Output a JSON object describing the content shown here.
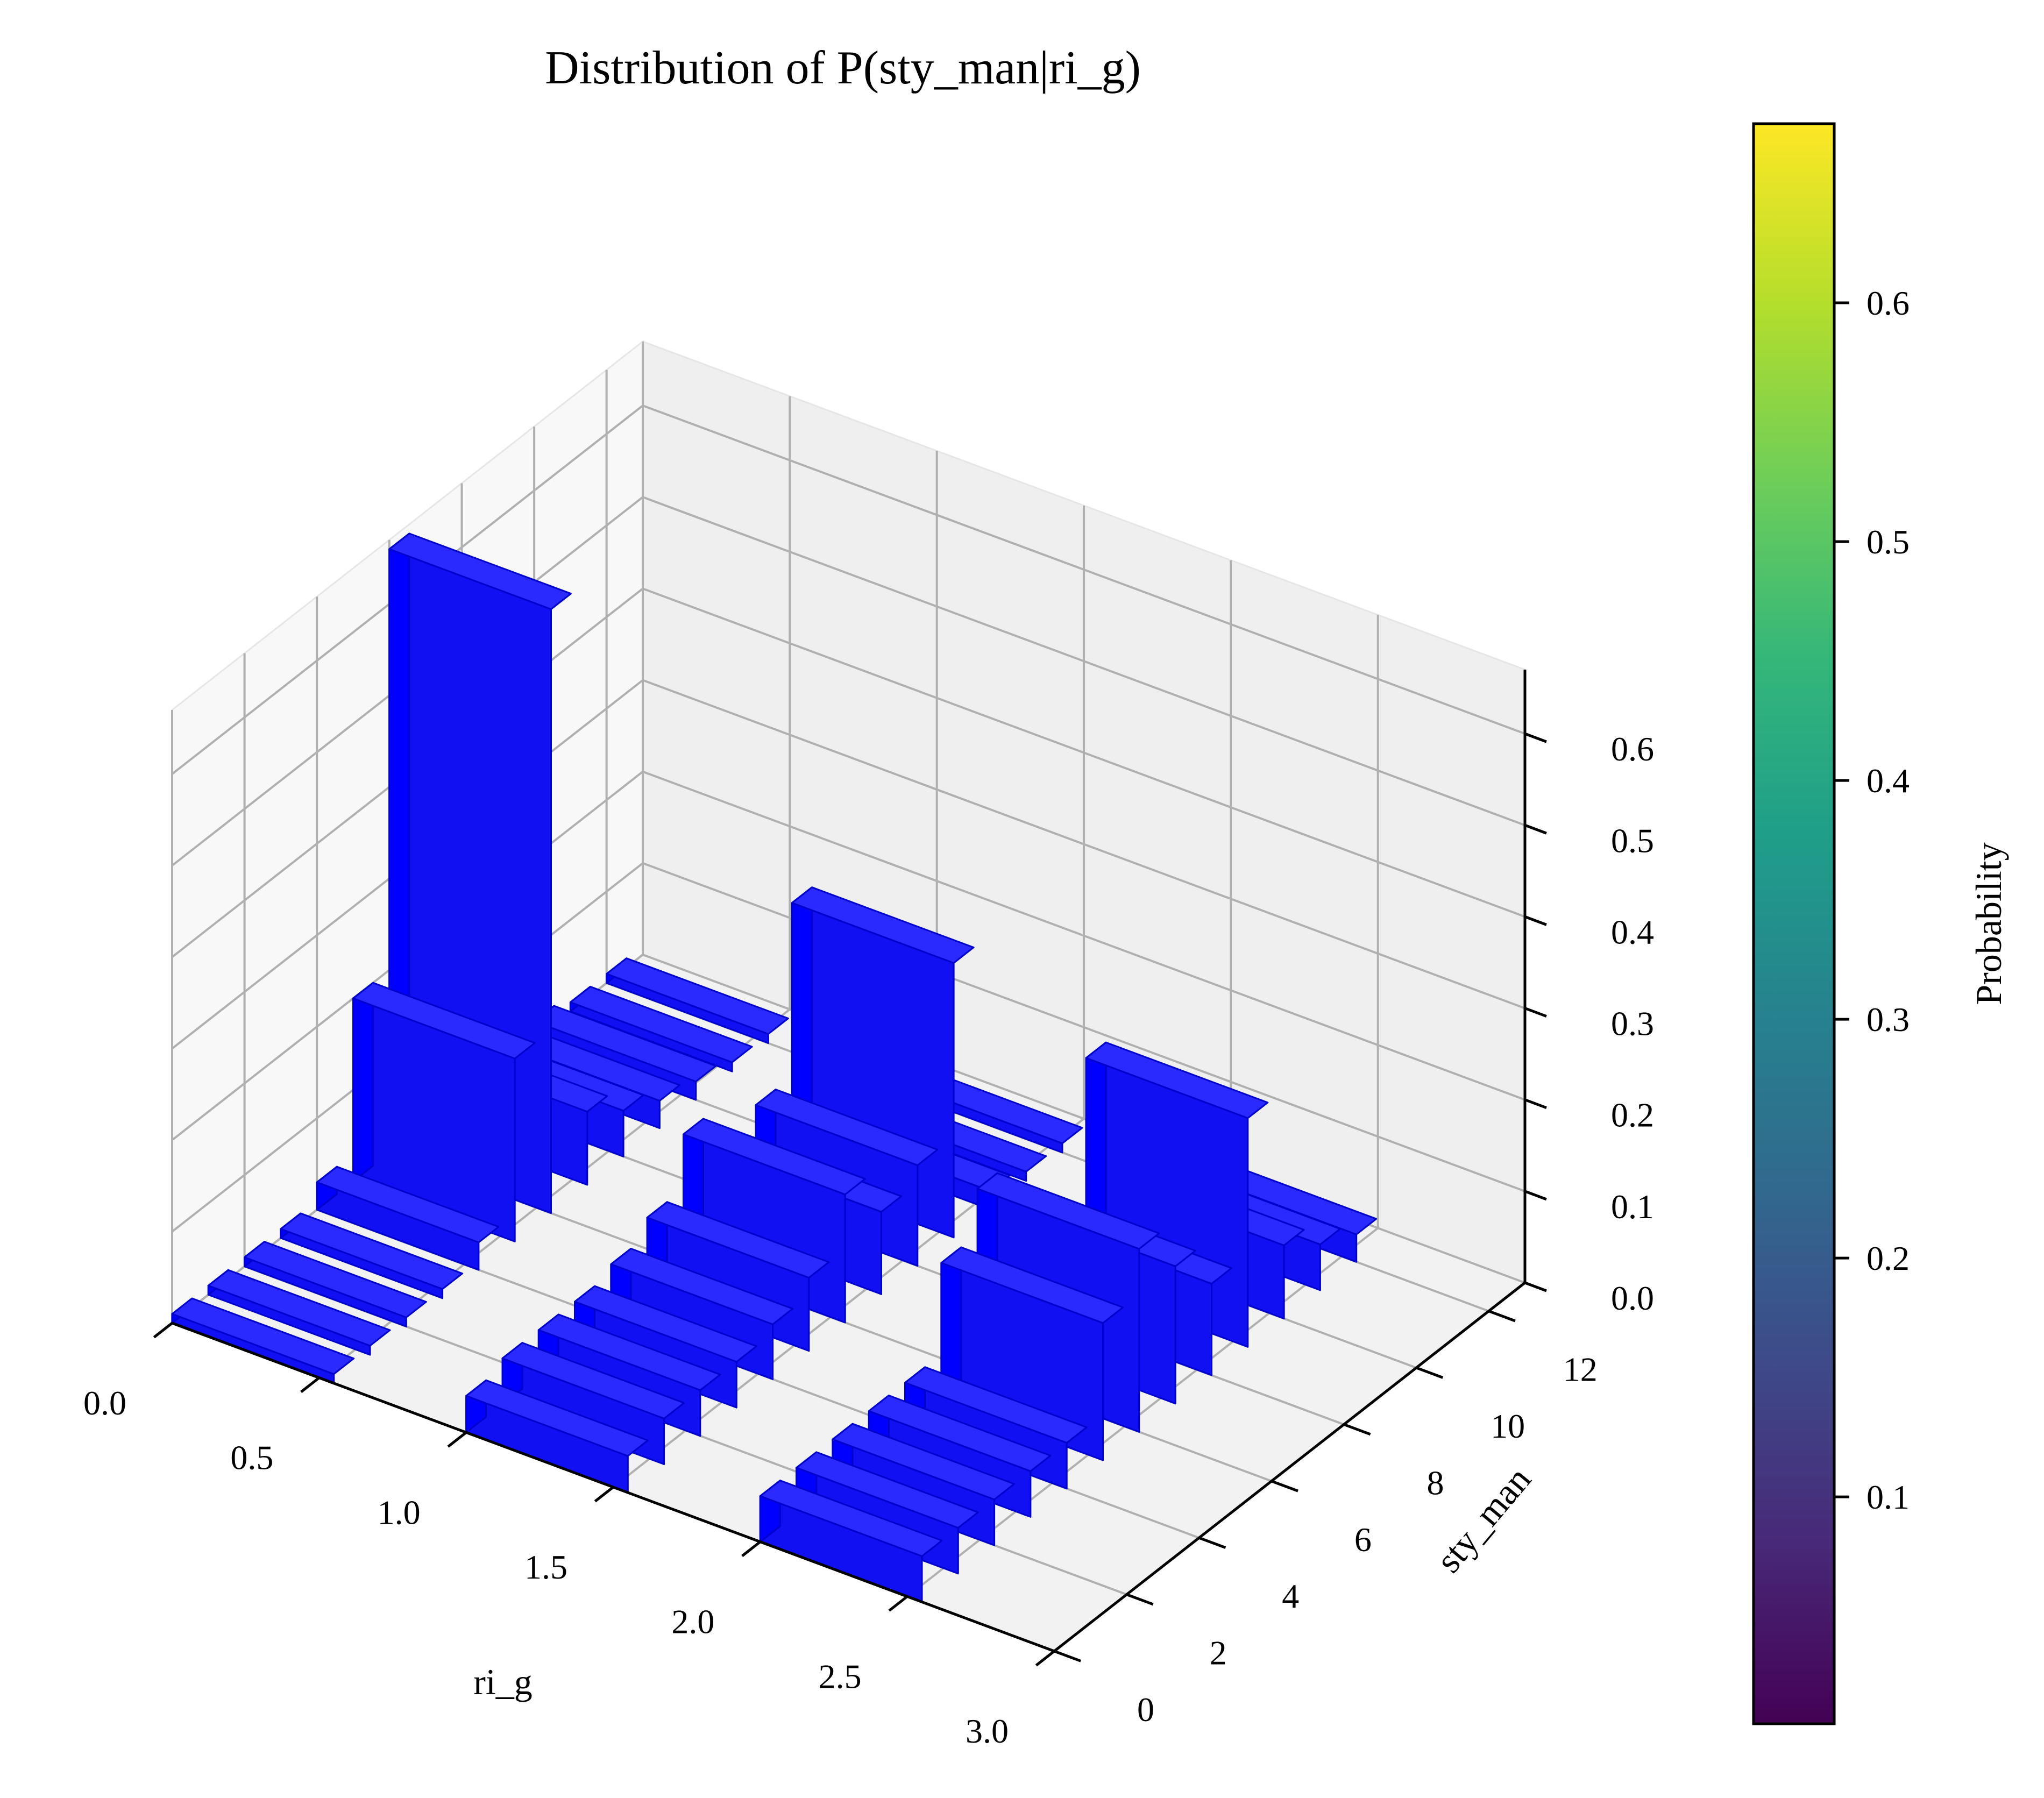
{
  "chart_data": {
    "type": "bar3d",
    "title": "Distribution of P(sty_man|ri_g)",
    "xlabel": "ri_g",
    "ylabel": "sty_man",
    "zlabel": "",
    "x_ticks": [
      "0.0",
      "0.5",
      "1.0",
      "1.5",
      "2.0",
      "2.5",
      "3.0"
    ],
    "y_ticks": [
      "0",
      "2",
      "4",
      "6",
      "8",
      "10",
      "12"
    ],
    "z_ticks": [
      "0.0",
      "0.1",
      "0.2",
      "0.3",
      "0.4",
      "0.5",
      "0.6"
    ],
    "xlim": [
      0,
      3
    ],
    "ylim": [
      0,
      13
    ],
    "zlim": [
      0,
      0.67
    ],
    "bar_color": "#0000ff",
    "grid": true,
    "colorbar": {
      "label": "Probability",
      "colormap": "viridis",
      "ticks": [
        "0.1",
        "0.2",
        "0.3",
        "0.4",
        "0.5",
        "0.6"
      ],
      "range": [
        0.005,
        0.675
      ]
    },
    "series": [
      {
        "x": 0,
        "y": [
          0,
          1,
          2,
          3,
          4,
          5,
          6,
          7,
          8,
          9,
          10,
          11,
          12
        ],
        "values": [
          0.01,
          0.01,
          0.01,
          0.01,
          0.03,
          0.2,
          0.66,
          0.08,
          0.05,
          0.03,
          0.02,
          0.01,
          0.01
        ]
      },
      {
        "x": 1,
        "y": [
          0,
          1,
          2,
          3,
          4,
          5,
          6,
          7,
          8,
          9,
          10,
          11,
          12
        ],
        "values": [
          0.04,
          0.05,
          0.05,
          0.05,
          0.06,
          0.08,
          0.14,
          0.09,
          0.11,
          0.3,
          0.02,
          0.01,
          0.01
        ]
      },
      {
        "x": 2,
        "y": [
          0,
          1,
          2,
          3,
          4,
          5,
          6,
          7,
          8,
          9,
          10,
          11,
          12
        ],
        "values": [
          0.05,
          0.05,
          0.05,
          0.05,
          0.05,
          0.15,
          0.2,
          0.15,
          0.1,
          0.25,
          0.08,
          0.05,
          0.03
        ]
      }
    ]
  }
}
